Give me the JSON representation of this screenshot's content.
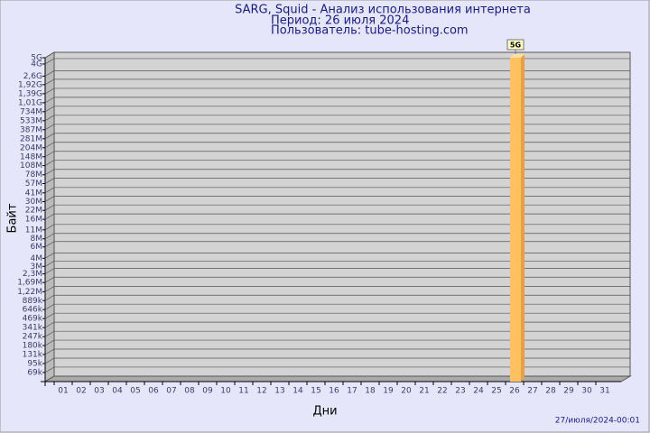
{
  "chart_data": {
    "type": "bar",
    "title": "SARG, Squid - Анализ использования интернета",
    "subtitle": "Период: 26 июля 2024",
    "user": "Пользователь: tube-hosting.com",
    "y_label": "Байт",
    "x_label": "Дни",
    "footer": "27/июля/2024-00:01",
    "categories": [
      "01",
      "02",
      "03",
      "04",
      "05",
      "06",
      "07",
      "08",
      "09",
      "10",
      "11",
      "12",
      "13",
      "14",
      "15",
      "16",
      "17",
      "18",
      "19",
      "20",
      "21",
      "22",
      "23",
      "24",
      "25",
      "26",
      "27",
      "28",
      "29",
      "30",
      "31"
    ],
    "values": [
      null,
      null,
      null,
      null,
      null,
      null,
      null,
      null,
      null,
      null,
      null,
      null,
      null,
      null,
      null,
      null,
      null,
      null,
      null,
      null,
      null,
      null,
      null,
      null,
      null,
      5000000000,
      null,
      null,
      null,
      null,
      null
    ],
    "value_labels": [
      null,
      null,
      null,
      null,
      null,
      null,
      null,
      null,
      null,
      null,
      null,
      null,
      null,
      null,
      null,
      null,
      null,
      null,
      null,
      null,
      null,
      null,
      null,
      null,
      null,
      "5G",
      null,
      null,
      null,
      null,
      null
    ],
    "color": "#ffc060",
    "log_scale": true,
    "grid": true,
    "ylim": [
      50000,
      5000000000
    ],
    "yticks": [
      {
        "value": 69000,
        "label": "69k"
      },
      {
        "value": 95000,
        "label": "95k"
      },
      {
        "value": 131000,
        "label": "131k"
      },
      {
        "value": 180000,
        "label": "180k"
      },
      {
        "value": 247000,
        "label": "247k"
      },
      {
        "value": 341000,
        "label": "341k"
      },
      {
        "value": 469000,
        "label": "469k"
      },
      {
        "value": 646000,
        "label": "646k"
      },
      {
        "value": 889000,
        "label": "889k"
      },
      {
        "value": 1220000,
        "label": "1,22M"
      },
      {
        "value": 1690000,
        "label": "1,69M"
      },
      {
        "value": 2300000,
        "label": "2,3M"
      },
      {
        "value": 3000000,
        "label": "3M"
      },
      {
        "value": 4000000,
        "label": "4M"
      },
      {
        "value": 6000000,
        "label": "6M"
      },
      {
        "value": 8000000,
        "label": "8M"
      },
      {
        "value": 11000000,
        "label": "11M"
      },
      {
        "value": 16000000,
        "label": "16M"
      },
      {
        "value": 22000000,
        "label": "22M"
      },
      {
        "value": 30000000,
        "label": "30M"
      },
      {
        "value": 41000000,
        "label": "41M"
      },
      {
        "value": 57000000,
        "label": "57M"
      },
      {
        "value": 78000000,
        "label": "78M"
      },
      {
        "value": 108000000,
        "label": "108M"
      },
      {
        "value": 148000000,
        "label": "148M"
      },
      {
        "value": 204000000,
        "label": "204M"
      },
      {
        "value": 281000000,
        "label": "281M"
      },
      {
        "value": 387000000,
        "label": "387M"
      },
      {
        "value": 533000000,
        "label": "533M"
      },
      {
        "value": 734000000,
        "label": "734M"
      },
      {
        "value": 1010000000,
        "label": "1,01G"
      },
      {
        "value": 1390000000,
        "label": "1,39G"
      },
      {
        "value": 1920000000,
        "label": "1,92G"
      },
      {
        "value": 2600000000,
        "label": "2,6G"
      },
      {
        "value": 4000000000,
        "label": "4G"
      },
      {
        "value": 5000000000,
        "label": "5G"
      }
    ]
  }
}
